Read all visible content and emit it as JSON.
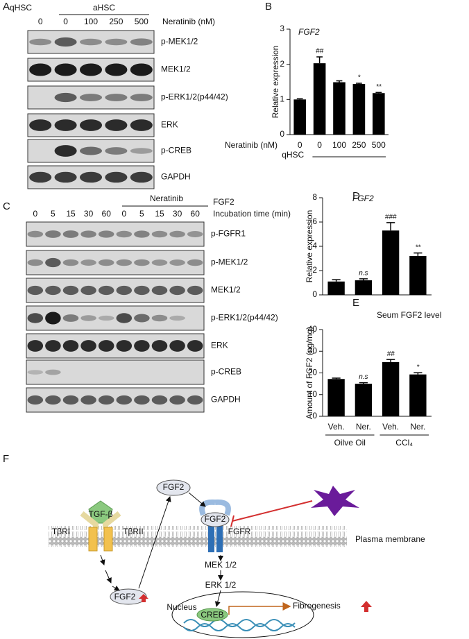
{
  "panel_labels": [
    "A",
    "B",
    "C",
    "D",
    "E",
    "F"
  ],
  "blot_a": {
    "group_labels": [
      "qHSC",
      "aHSC"
    ],
    "treatment_label": "Neratinib (nM)",
    "lanes": [
      "0",
      "0",
      "100",
      "250",
      "500"
    ],
    "rows": [
      "p-MEK1/2",
      "MEK1/2",
      "p-ERK1/2(p44/42)",
      "ERK",
      "p-CREB",
      "GAPDH"
    ]
  },
  "blot_c": {
    "top_label": "FGF2",
    "group_label": "Neratinib",
    "time_label": "Incubation time (min)",
    "lanes": [
      "0",
      "5",
      "15",
      "30",
      "60",
      "0",
      "5",
      "15",
      "30",
      "60"
    ],
    "rows": [
      "p-FGFR1",
      "p-MEK1/2",
      "MEK1/2",
      "p-ERK1/2(p44/42)",
      "ERK",
      "p-CREB",
      "GAPDH"
    ]
  },
  "chart_data": [
    {
      "type": "bar",
      "title": "FGF2",
      "y_label": "Relative expression",
      "x_label": "Neratinib (nM)",
      "group_label": "qHSC",
      "categories": [
        "0",
        "0",
        "100",
        "250",
        "500"
      ],
      "values": [
        1.0,
        2.03,
        1.49,
        1.44,
        1.18
      ],
      "errors": [
        0.02,
        0.18,
        0.04,
        0.02,
        0.02
      ],
      "annotations": [
        null,
        "##",
        null,
        "*",
        "**"
      ],
      "ylim": [
        0,
        3
      ],
      "yticks": [
        0,
        1,
        2,
        3
      ],
      "color": "#000000"
    },
    {
      "type": "bar",
      "title": "FGF2",
      "y_label": "Relative expression",
      "categories": [
        null,
        null,
        null,
        null
      ],
      "values": [
        1.1,
        1.2,
        5.3,
        3.2
      ],
      "errors": [
        0.15,
        0.12,
        0.65,
        0.25
      ],
      "annotations": [
        null,
        "n.s",
        "###",
        "**"
      ],
      "ylim": [
        0,
        8
      ],
      "yticks": [
        0,
        2,
        4,
        6,
        8
      ],
      "color": "#000000"
    },
    {
      "type": "bar",
      "title": "Seum FGF2 level",
      "y_label": "Amount of FGF2 (ng/mg)",
      "categories": [
        "Veh.",
        "Ner.",
        "Veh.",
        "Ner."
      ],
      "group_labels": [
        "Oilve Oil",
        "CCl₄"
      ],
      "values": [
        17.2,
        15.0,
        25.0,
        19.3
      ],
      "errors": [
        0.4,
        0.5,
        1.2,
        0.8
      ],
      "annotations": [
        null,
        "n.s",
        "##",
        "*"
      ],
      "ylim": [
        0,
        40
      ],
      "yticks": [
        0,
        10,
        20,
        30,
        40
      ],
      "color": "#000000"
    }
  ],
  "diagram": {
    "ligand_top": "FGF2",
    "tgf": "TGF-β",
    "receptor_1": "TβRI",
    "receptor_2": "TβRII",
    "bound_ligand": "FGF2",
    "fgfr": "FGFR",
    "membrane": "Plasma membrane",
    "mek": "MEK 1/2",
    "erk": "ERK 1/2",
    "upregulated": "FGF2",
    "nucleus": "Nucleus",
    "creb": "CREB",
    "output": "Fibrogenesis"
  }
}
